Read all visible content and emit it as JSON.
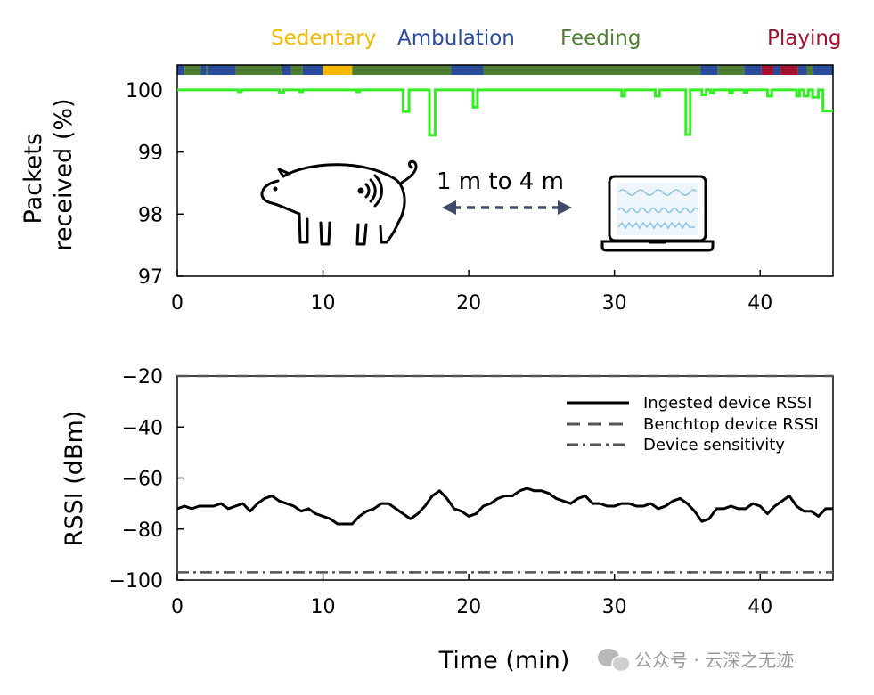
{
  "colors": {
    "sedentary": "#f5b800",
    "ambulation": "#2b4c9b",
    "feeding": "#4f7d33",
    "playing": "#a3122e",
    "packets_line": "#33ee22",
    "rssi_line": "#000000",
    "benchtop_line": "#555555",
    "sensitivity_line": "#555555"
  },
  "annotation": {
    "distance": "1 m to 4 m"
  },
  "icons": [
    "pig-icon",
    "wireless-signal-icon",
    "laptop-icon",
    "double-arrow-icon"
  ],
  "xaxis_title": "Time (min)",
  "watermark": {
    "text": "公众号 · 云深之无迹",
    "icon": "wechat-icon"
  },
  "chart_data": [
    {
      "type": "line",
      "ylabel": "Packets received (%)",
      "ylabel_lines": [
        "Packets",
        "received (%)"
      ],
      "xlim": [
        0,
        45
      ],
      "ylim": [
        97,
        100.4
      ],
      "xticks": [
        0,
        10,
        20,
        30,
        40
      ],
      "xtick_labels": [
        "0",
        "10",
        "20",
        "30",
        "40"
      ],
      "yticks": [
        97,
        98,
        99,
        100
      ],
      "ytick_labels": [
        "97",
        "98",
        "99",
        "100"
      ],
      "activity_legend": [
        {
          "label": "Sedentary",
          "color": "#f5b800"
        },
        {
          "label": "Ambulation",
          "color": "#2b4c9b"
        },
        {
          "label": "Feeding",
          "color": "#4f7d33"
        },
        {
          "label": "Playing",
          "color": "#a3122e"
        }
      ],
      "activity_segments": [
        {
          "start": 0.0,
          "end": 0.5,
          "activity": "Ambulation"
        },
        {
          "start": 0.5,
          "end": 1.6,
          "activity": "Feeding"
        },
        {
          "start": 1.6,
          "end": 2.0,
          "activity": "Ambulation"
        },
        {
          "start": 2.0,
          "end": 2.1,
          "activity": "Feeding"
        },
        {
          "start": 2.1,
          "end": 4.0,
          "activity": "Ambulation"
        },
        {
          "start": 4.0,
          "end": 7.2,
          "activity": "Feeding"
        },
        {
          "start": 7.2,
          "end": 7.8,
          "activity": "Ambulation"
        },
        {
          "start": 7.8,
          "end": 8.6,
          "activity": "Feeding"
        },
        {
          "start": 8.6,
          "end": 10.0,
          "activity": "Ambulation"
        },
        {
          "start": 10.0,
          "end": 12.0,
          "activity": "Sedentary"
        },
        {
          "start": 12.0,
          "end": 18.8,
          "activity": "Feeding"
        },
        {
          "start": 18.8,
          "end": 21.0,
          "activity": "Ambulation"
        },
        {
          "start": 21.0,
          "end": 35.9,
          "activity": "Feeding"
        },
        {
          "start": 35.9,
          "end": 37.1,
          "activity": "Ambulation"
        },
        {
          "start": 37.1,
          "end": 38.9,
          "activity": "Feeding"
        },
        {
          "start": 38.9,
          "end": 40.1,
          "activity": "Ambulation"
        },
        {
          "start": 40.1,
          "end": 40.9,
          "activity": "Playing"
        },
        {
          "start": 40.9,
          "end": 41.4,
          "activity": "Ambulation"
        },
        {
          "start": 41.4,
          "end": 42.6,
          "activity": "Playing"
        },
        {
          "start": 42.6,
          "end": 43.2,
          "activity": "Ambulation"
        },
        {
          "start": 43.2,
          "end": 43.6,
          "activity": "Feeding"
        },
        {
          "start": 43.6,
          "end": 45.0,
          "activity": "Ambulation"
        }
      ],
      "series": [
        {
          "values_step": true,
          "x": [
            0,
            4.2,
            4.2,
            4.4,
            4.4,
            7.0,
            7.0,
            7.3,
            7.3,
            8.4,
            8.4,
            8.6,
            8.6,
            12.3,
            12.3,
            12.5,
            12.5,
            15.5,
            15.5,
            15.9,
            15.9,
            17.3,
            17.3,
            17.7,
            17.7,
            20.3,
            20.3,
            20.6,
            20.6,
            30.5,
            30.5,
            30.7,
            30.7,
            32.8,
            32.8,
            33.1,
            33.1,
            34.9,
            34.9,
            35.2,
            35.2,
            36.0,
            36.0,
            36.3,
            36.3,
            36.6,
            36.6,
            36.8,
            36.8,
            37.9,
            37.9,
            38.1,
            38.1,
            38.9,
            38.9,
            39.1,
            39.1,
            40.5,
            40.5,
            40.8,
            40.8,
            42.5,
            42.5,
            42.7,
            42.7,
            43.0,
            43.0,
            43.3,
            43.3,
            43.6,
            43.6,
            44.0,
            44.0,
            44.3,
            44.3,
            45
          ],
          "values": [
            100,
            100,
            99.97,
            99.97,
            100,
            100,
            99.96,
            99.96,
            100,
            100,
            99.97,
            99.97,
            100,
            100,
            99.97,
            99.97,
            100,
            100,
            99.65,
            99.65,
            100,
            100,
            99.27,
            99.27,
            100,
            100,
            99.72,
            99.72,
            100,
            100,
            99.9,
            99.9,
            100,
            100,
            99.9,
            99.9,
            100,
            100,
            99.28,
            99.28,
            100,
            100,
            99.92,
            99.92,
            100,
            100,
            99.95,
            99.95,
            100,
            100,
            99.95,
            99.95,
            100,
            100,
            99.96,
            99.96,
            100,
            100,
            99.9,
            99.9,
            100,
            100,
            99.9,
            99.9,
            100,
            100,
            99.9,
            99.9,
            100,
            100,
            99.88,
            99.88,
            100,
            100,
            99.66,
            99.66
          ]
        }
      ]
    },
    {
      "type": "line",
      "ylabel": "RSSI (dBm)",
      "xlabel": "Time (min)",
      "xlim": [
        0,
        45
      ],
      "ylim": [
        -100,
        -20
      ],
      "xticks": [
        0,
        10,
        20,
        30,
        40
      ],
      "xtick_labels": [
        "0",
        "10",
        "20",
        "30",
        "40"
      ],
      "yticks": [
        -100,
        -80,
        -60,
        -40,
        -20
      ],
      "ytick_labels": [
        "−100",
        "−80",
        "−60",
        "−40",
        "−20"
      ],
      "legend_position": "top-right",
      "series": [
        {
          "name": "Ingested device RSSI",
          "style": "solid",
          "x": [
            0,
            0.5,
            1.0,
            1.5,
            2.0,
            2.5,
            3.0,
            3.5,
            4.0,
            4.5,
            5.0,
            5.5,
            6.0,
            6.5,
            7.0,
            7.5,
            8.0,
            8.5,
            9.0,
            9.5,
            10.0,
            10.5,
            11.0,
            11.5,
            12.0,
            12.5,
            13.0,
            13.5,
            14.0,
            14.5,
            15.0,
            15.5,
            16.0,
            16.5,
            17.0,
            17.5,
            18.0,
            18.5,
            19.0,
            19.5,
            20.0,
            20.5,
            21.0,
            21.5,
            22.0,
            22.5,
            23.0,
            23.5,
            24.0,
            24.5,
            25.0,
            25.5,
            26.0,
            26.5,
            27.0,
            27.5,
            28.0,
            28.5,
            29.0,
            29.5,
            30.0,
            30.5,
            31.0,
            31.5,
            32.0,
            32.5,
            33.0,
            33.5,
            34.0,
            34.5,
            35.0,
            35.5,
            36.0,
            36.5,
            37.0,
            37.5,
            38.0,
            38.5,
            39.0,
            39.5,
            40.0,
            40.5,
            41.0,
            41.5,
            42.0,
            42.5,
            43.0,
            43.5,
            44.0,
            44.5,
            45.0
          ],
          "values": [
            -72,
            -71,
            -72,
            -71,
            -71,
            -71,
            -70,
            -72,
            -71,
            -70,
            -73,
            -70,
            -68,
            -67,
            -69,
            -70,
            -71,
            -73,
            -72,
            -74,
            -75,
            -76,
            -78,
            -78,
            -78,
            -75,
            -73,
            -72,
            -70,
            -70,
            -72,
            -74,
            -76,
            -74,
            -71,
            -67,
            -65,
            -68,
            -72,
            -73,
            -75,
            -74,
            -71,
            -70,
            -68,
            -67,
            -67,
            -65,
            -64,
            -65,
            -65,
            -66,
            -68,
            -69,
            -70,
            -68,
            -67,
            -70,
            -70,
            -71,
            -71,
            -70,
            -70,
            -71,
            -71,
            -70,
            -72,
            -71,
            -69,
            -68,
            -70,
            -73,
            -77,
            -76,
            -72,
            -72,
            -71,
            -72,
            -72,
            -70,
            -71,
            -74,
            -71,
            -69,
            -67,
            -71,
            -73,
            -73,
            -75,
            -72,
            -72
          ]
        },
        {
          "name": "Benchtop device RSSI",
          "style": "dashed",
          "x": [
            0,
            45
          ],
          "values": [
            -20,
            -20
          ]
        },
        {
          "name": "Device sensitivity",
          "style": "dashdot",
          "x": [
            0,
            45
          ],
          "values": [
            -97,
            -97
          ]
        }
      ]
    }
  ]
}
